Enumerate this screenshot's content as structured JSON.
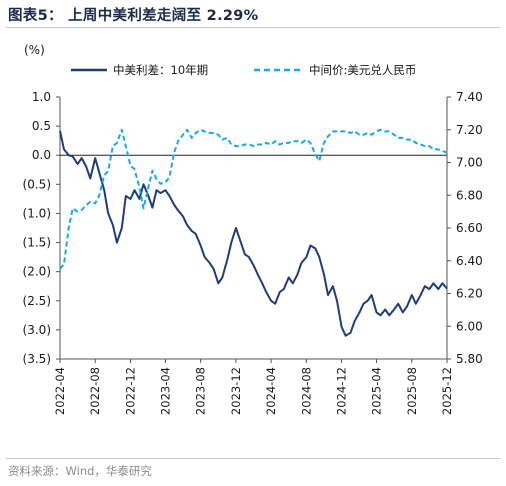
{
  "header": {
    "title": "图表5：  上周中美利差走阔至 2.29%"
  },
  "source": "资料来源：Wind，华泰研究",
  "chart_data": {
    "type": "line",
    "left_axis": {
      "unit_label": "(%)",
      "ylim": [
        -3.5,
        1.0
      ],
      "ticks": [
        "1.0",
        "0.5",
        "0.0",
        "(0.5)",
        "(1.0)",
        "(1.5)",
        "(2.0)",
        "(2.5)",
        "(3.0)",
        "(3.5)"
      ],
      "tick_values": [
        1.0,
        0.5,
        0.0,
        -0.5,
        -1.0,
        -1.5,
        -2.0,
        -2.5,
        -3.0,
        -3.5
      ]
    },
    "right_axis": {
      "ylim": [
        5.8,
        7.4
      ],
      "ticks": [
        "7.40",
        "7.20",
        "7.00",
        "6.80",
        "6.60",
        "6.40",
        "6.20",
        "6.00",
        "5.80"
      ],
      "tick_values": [
        7.4,
        7.2,
        7.0,
        6.8,
        6.6,
        6.4,
        6.2,
        6.0,
        5.8
      ]
    },
    "x_ticks": [
      "2022-04",
      "2022-08",
      "2022-12",
      "2023-04",
      "2023-08",
      "2023-12",
      "2024-04",
      "2024-08",
      "2024-12",
      "2025-04",
      "2025-08",
      "2025-12"
    ],
    "x_range": [
      "2022-04",
      "2025-12"
    ],
    "series": [
      {
        "name": "中美利差：10年期",
        "axis": "left",
        "color": "#1f3d7a",
        "style": "solid",
        "points": [
          [
            "2022-04",
            0.42
          ],
          [
            "2022-04-15",
            0.1
          ],
          [
            "2022-05",
            0.0
          ],
          [
            "2022-05-15",
            -0.02
          ],
          [
            "2022-06",
            -0.15
          ],
          [
            "2022-06-15",
            -0.05
          ],
          [
            "2022-07",
            -0.2
          ],
          [
            "2022-07-15",
            -0.4
          ],
          [
            "2022-08",
            -0.05
          ],
          [
            "2022-08-15",
            -0.3
          ],
          [
            "2022-09",
            -0.6
          ],
          [
            "2022-09-15",
            -1.0
          ],
          [
            "2022-10",
            -1.2
          ],
          [
            "2022-10-15",
            -1.5
          ],
          [
            "2022-11",
            -1.25
          ],
          [
            "2022-11-15",
            -0.7
          ],
          [
            "2022-12",
            -0.75
          ],
          [
            "2022-12-15",
            -0.6
          ],
          [
            "2023-01",
            -0.75
          ],
          [
            "2023-01-15",
            -0.5
          ],
          [
            "2023-02",
            -0.7
          ],
          [
            "2023-02-15",
            -0.9
          ],
          [
            "2023-03",
            -0.6
          ],
          [
            "2023-03-15",
            -0.65
          ],
          [
            "2023-04",
            -0.6
          ],
          [
            "2023-04-15",
            -0.7
          ],
          [
            "2023-05",
            -0.85
          ],
          [
            "2023-05-15",
            -0.95
          ],
          [
            "2023-06",
            -1.05
          ],
          [
            "2023-06-15",
            -1.2
          ],
          [
            "2023-07",
            -1.3
          ],
          [
            "2023-07-15",
            -1.35
          ],
          [
            "2023-08",
            -1.55
          ],
          [
            "2023-08-15",
            -1.75
          ],
          [
            "2023-09",
            -1.85
          ],
          [
            "2023-09-15",
            -1.95
          ],
          [
            "2023-10",
            -2.2
          ],
          [
            "2023-10-15",
            -2.1
          ],
          [
            "2023-11",
            -1.8
          ],
          [
            "2023-11-15",
            -1.5
          ],
          [
            "2023-12",
            -1.25
          ],
          [
            "2023-12-15",
            -1.45
          ],
          [
            "2024-01",
            -1.7
          ],
          [
            "2024-01-15",
            -1.75
          ],
          [
            "2024-02",
            -1.9
          ],
          [
            "2024-02-15",
            -2.05
          ],
          [
            "2024-03",
            -2.2
          ],
          [
            "2024-03-15",
            -2.35
          ],
          [
            "2024-04",
            -2.5
          ],
          [
            "2024-04-15",
            -2.55
          ],
          [
            "2024-05",
            -2.35
          ],
          [
            "2024-05-15",
            -2.3
          ],
          [
            "2024-06",
            -2.1
          ],
          [
            "2024-06-15",
            -2.2
          ],
          [
            "2024-07",
            -2.05
          ],
          [
            "2024-07-15",
            -1.85
          ],
          [
            "2024-08",
            -1.75
          ],
          [
            "2024-08-15",
            -1.55
          ],
          [
            "2024-09",
            -1.6
          ],
          [
            "2024-09-15",
            -1.75
          ],
          [
            "2024-10",
            -2.05
          ],
          [
            "2024-10-15",
            -2.4
          ],
          [
            "2024-11",
            -2.25
          ],
          [
            "2024-11-15",
            -2.5
          ],
          [
            "2024-12",
            -2.95
          ],
          [
            "2024-12-15",
            -3.1
          ],
          [
            "2025-01",
            -3.05
          ],
          [
            "2025-01-15",
            -2.85
          ],
          [
            "2025-02",
            -2.7
          ],
          [
            "2025-02-15",
            -2.55
          ],
          [
            "2025-03",
            -2.5
          ],
          [
            "2025-03-15",
            -2.4
          ],
          [
            "2025-04",
            -2.7
          ],
          [
            "2025-04-15",
            -2.75
          ],
          [
            "2025-05",
            -2.65
          ],
          [
            "2025-05-15",
            -2.75
          ],
          [
            "2025-06",
            -2.65
          ],
          [
            "2025-06-15",
            -2.55
          ],
          [
            "2025-07",
            -2.7
          ],
          [
            "2025-07-15",
            -2.6
          ],
          [
            "2025-08",
            -2.4
          ],
          [
            "2025-08-15",
            -2.55
          ],
          [
            "2025-09",
            -2.4
          ],
          [
            "2025-09-15",
            -2.25
          ],
          [
            "2025-10",
            -2.3
          ],
          [
            "2025-10-15",
            -2.2
          ],
          [
            "2025-11",
            -2.3
          ],
          [
            "2025-11-15",
            -2.2
          ],
          [
            "2025-12",
            -2.29
          ]
        ]
      },
      {
        "name": "中间价:美元兑人民币",
        "axis": "right",
        "color": "#19a9e6",
        "style": "dashed",
        "points": [
          [
            "2022-04",
            6.35
          ],
          [
            "2022-04-15",
            6.38
          ],
          [
            "2022-05",
            6.6
          ],
          [
            "2022-05-15",
            6.72
          ],
          [
            "2022-06",
            6.7
          ],
          [
            "2022-06-15",
            6.71
          ],
          [
            "2022-07",
            6.74
          ],
          [
            "2022-07-15",
            6.76
          ],
          [
            "2022-08",
            6.75
          ],
          [
            "2022-08-15",
            6.8
          ],
          [
            "2022-09",
            6.92
          ],
          [
            "2022-09-15",
            6.95
          ],
          [
            "2022-10",
            7.1
          ],
          [
            "2022-10-15",
            7.12
          ],
          [
            "2022-11",
            7.2
          ],
          [
            "2022-11-15",
            7.1
          ],
          [
            "2022-12",
            6.98
          ],
          [
            "2022-12-15",
            6.96
          ],
          [
            "2023-01",
            6.85
          ],
          [
            "2023-01-15",
            6.72
          ],
          [
            "2023-02",
            6.85
          ],
          [
            "2023-02-15",
            6.95
          ],
          [
            "2023-03",
            6.9
          ],
          [
            "2023-03-15",
            6.87
          ],
          [
            "2023-04",
            6.88
          ],
          [
            "2023-04-15",
            6.91
          ],
          [
            "2023-05",
            7.06
          ],
          [
            "2023-05-15",
            7.13
          ],
          [
            "2023-06",
            7.17
          ],
          [
            "2023-06-15",
            7.2
          ],
          [
            "2023-07",
            7.15
          ],
          [
            "2023-07-15",
            7.18
          ],
          [
            "2023-08",
            7.2
          ],
          [
            "2023-08-15",
            7.19
          ],
          [
            "2023-09",
            7.18
          ],
          [
            "2023-09-15",
            7.18
          ],
          [
            "2023-10",
            7.17
          ],
          [
            "2023-10-15",
            7.14
          ],
          [
            "2023-11",
            7.15
          ],
          [
            "2023-11-15",
            7.11
          ],
          [
            "2023-12",
            7.1
          ],
          [
            "2023-12-15",
            7.1
          ],
          [
            "2024-01",
            7.11
          ],
          [
            "2024-01-15",
            7.11
          ],
          [
            "2024-02",
            7.1
          ],
          [
            "2024-02-15",
            7.11
          ],
          [
            "2024-03",
            7.11
          ],
          [
            "2024-03-15",
            7.12
          ],
          [
            "2024-04",
            7.11
          ],
          [
            "2024-04-15",
            7.13
          ],
          [
            "2024-05",
            7.11
          ],
          [
            "2024-05-15",
            7.12
          ],
          [
            "2024-06",
            7.12
          ],
          [
            "2024-06-15",
            7.13
          ],
          [
            "2024-07",
            7.13
          ],
          [
            "2024-07-15",
            7.12
          ],
          [
            "2024-08",
            7.14
          ],
          [
            "2024-08-15",
            7.12
          ],
          [
            "2024-09",
            7.05
          ],
          [
            "2024-09-15",
            7.01
          ],
          [
            "2024-10",
            7.12
          ],
          [
            "2024-10-15",
            7.16
          ],
          [
            "2024-11",
            7.19
          ],
          [
            "2024-11-15",
            7.19
          ],
          [
            "2024-12",
            7.19
          ],
          [
            "2024-12-15",
            7.19
          ],
          [
            "2025-01",
            7.18
          ],
          [
            "2025-01-15",
            7.19
          ],
          [
            "2025-02",
            7.17
          ],
          [
            "2025-02-15",
            7.17
          ],
          [
            "2025-03",
            7.18
          ],
          [
            "2025-03-15",
            7.17
          ],
          [
            "2025-04",
            7.19
          ],
          [
            "2025-04-15",
            7.2
          ],
          [
            "2025-05",
            7.19
          ],
          [
            "2025-05-15",
            7.19
          ],
          [
            "2025-06",
            7.17
          ],
          [
            "2025-06-15",
            7.15
          ],
          [
            "2025-07",
            7.15
          ],
          [
            "2025-07-15",
            7.14
          ],
          [
            "2025-08",
            7.14
          ],
          [
            "2025-08-15",
            7.12
          ],
          [
            "2025-09",
            7.11
          ],
          [
            "2025-09-15",
            7.1
          ],
          [
            "2025-10",
            7.1
          ],
          [
            "2025-10-15",
            7.08
          ],
          [
            "2025-11",
            7.08
          ],
          [
            "2025-11-15",
            7.07
          ],
          [
            "2025-12",
            7.06
          ]
        ]
      }
    ],
    "legend_placement": "top",
    "grid": false
  }
}
